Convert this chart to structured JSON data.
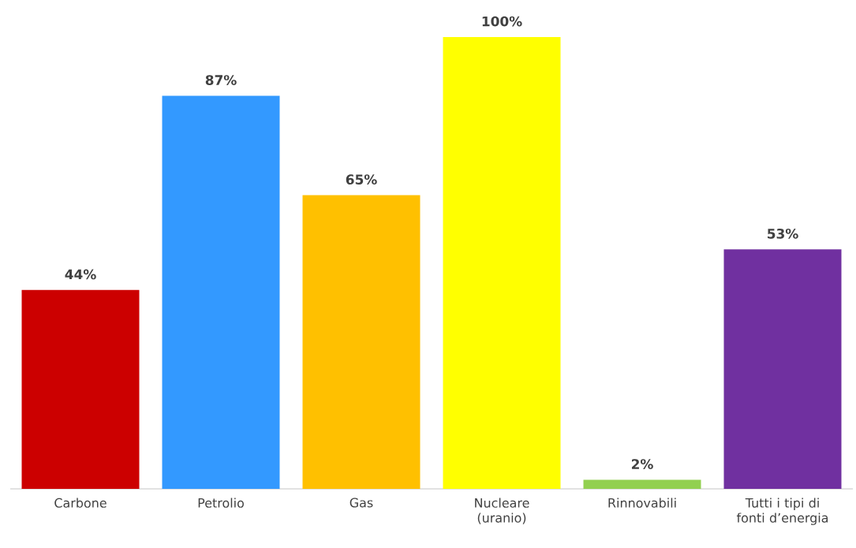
{
  "chart_data": {
    "type": "bar",
    "categories": [
      "Carbone",
      "Petrolio",
      "Gas",
      "Nucleare (uranio)",
      "Rinnovabili",
      "Tutti i tipi di fonti d’energia"
    ],
    "values": [
      44,
      87,
      65,
      100,
      2,
      53
    ],
    "colors": [
      "#cc0000",
      "#3399ff",
      "#ffc000",
      "#ffff00",
      "#92d050",
      "#7030a0"
    ],
    "value_labels": [
      "44%",
      "87%",
      "65%",
      "100%",
      "2%",
      "53%"
    ],
    "ylim": [
      0,
      100
    ],
    "tick_labels": "x"
  }
}
